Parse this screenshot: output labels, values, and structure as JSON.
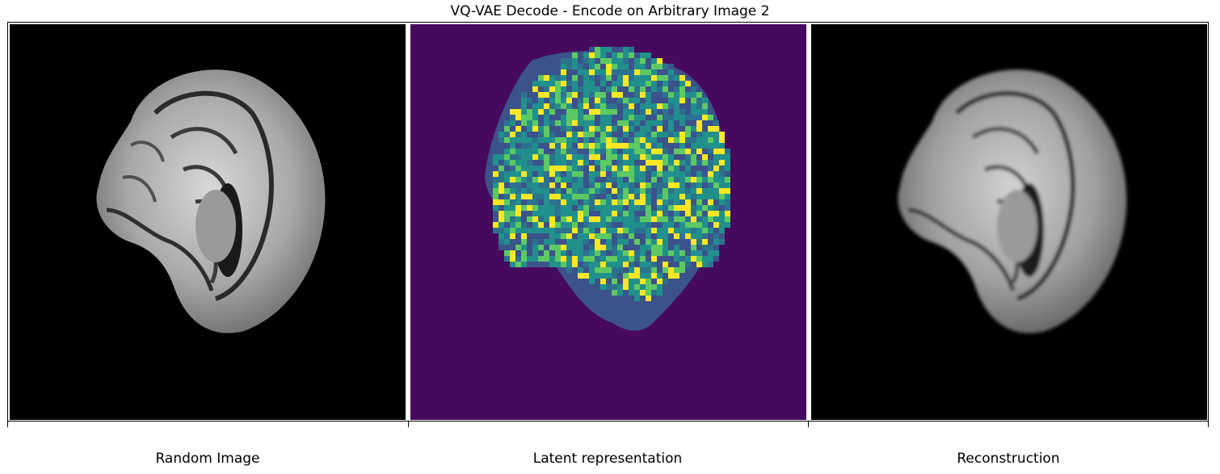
{
  "figure": {
    "title": "VQ-VAE Decode - Encode on Arbitrary Image 2",
    "panels": [
      {
        "label": "Random Image"
      },
      {
        "label": "Latent representation"
      },
      {
        "label": "Reconstruction"
      }
    ]
  },
  "colors": {
    "latent_background": "#46095e",
    "latent_palette": [
      "#3b528b",
      "#21908d",
      "#5dc963",
      "#fde725",
      "#2c728e"
    ]
  }
}
